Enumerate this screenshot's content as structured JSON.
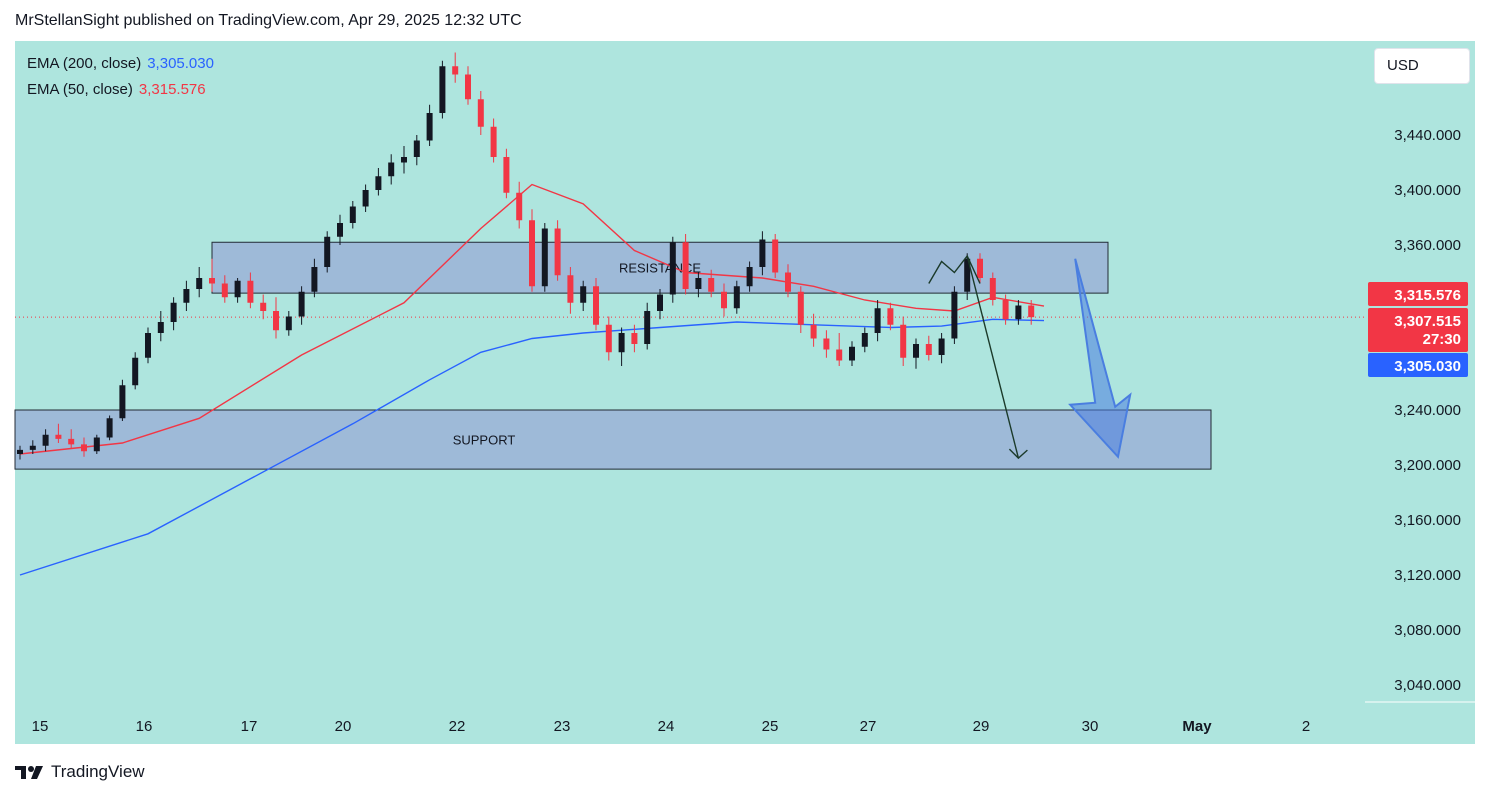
{
  "header": {
    "publisher_line": "MrStellanSight published on TradingView.com, Apr 29, 2025 12:32 UTC"
  },
  "legend": {
    "ema200": {
      "label": "EMA (200, close)",
      "value": "3,305.030",
      "color": "#2962ff"
    },
    "ema50": {
      "label": "EMA (50, close)",
      "value": "3,315.576",
      "color": "#f23645"
    }
  },
  "currency": "USD",
  "footer": {
    "brand": "TradingView"
  },
  "colors": {
    "background": "#aee5de",
    "bull": "#131722",
    "bear": "#f23645",
    "zone_fill": "#9db6d8",
    "arrow": "#4a7ee0"
  },
  "chart_data": {
    "type": "candlestick",
    "symbol_price_label": "3,307.515",
    "countdown": "27:30",
    "y_ticks": [
      3440,
      3400,
      3360,
      3320,
      3280,
      3240,
      3200,
      3160,
      3120,
      3080,
      3040
    ],
    "y_tick_labels": [
      "3,440.000",
      "3,400.000",
      "3,360.000",
      "",
      "",
      "3,240.000",
      "3,200.000",
      "3,160.000",
      "3,120.000",
      "3,080.000",
      "3,040.000"
    ],
    "x_labels": [
      "15",
      "16",
      "17",
      "20",
      "22",
      "23",
      "24",
      "25",
      "27",
      "29",
      "30",
      "May",
      "2"
    ],
    "price_badges": [
      {
        "text": "3,315.576",
        "value": 3315.576,
        "color": "#f23645"
      },
      {
        "text": "3,307.515",
        "value": 3307.515,
        "color": "#f23645"
      },
      {
        "text": "27:30",
        "value": 3307.515,
        "color": "#f23645"
      },
      {
        "text": "3,305.030",
        "value": 3305.03,
        "color": "#2962ff"
      }
    ],
    "zones": [
      {
        "label": "RESISTANCE",
        "low": 3325,
        "high": 3362
      },
      {
        "label": "SUPPORT",
        "low": 3197,
        "high": 3240
      }
    ],
    "candles": [
      [
        3208,
        3214,
        3204,
        3211
      ],
      [
        3211,
        3218,
        3208,
        3214
      ],
      [
        3214,
        3226,
        3210,
        3222
      ],
      [
        3222,
        3230,
        3216,
        3219
      ],
      [
        3219,
        3226,
        3212,
        3215
      ],
      [
        3215,
        3220,
        3206,
        3210
      ],
      [
        3210,
        3222,
        3208,
        3220
      ],
      [
        3220,
        3236,
        3218,
        3234
      ],
      [
        3234,
        3262,
        3232,
        3258
      ],
      [
        3258,
        3282,
        3255,
        3278
      ],
      [
        3278,
        3300,
        3274,
        3296
      ],
      [
        3296,
        3312,
        3290,
        3304
      ],
      [
        3304,
        3322,
        3298,
        3318
      ],
      [
        3318,
        3334,
        3312,
        3328
      ],
      [
        3328,
        3344,
        3322,
        3336
      ],
      [
        3336,
        3350,
        3326,
        3332
      ],
      [
        3332,
        3338,
        3318,
        3322
      ],
      [
        3322,
        3336,
        3318,
        3334
      ],
      [
        3334,
        3340,
        3314,
        3318
      ],
      [
        3318,
        3324,
        3306,
        3312
      ],
      [
        3312,
        3322,
        3292,
        3298
      ],
      [
        3298,
        3312,
        3294,
        3308
      ],
      [
        3308,
        3330,
        3302,
        3326
      ],
      [
        3326,
        3350,
        3322,
        3344
      ],
      [
        3344,
        3370,
        3340,
        3366
      ],
      [
        3366,
        3382,
        3360,
        3376
      ],
      [
        3376,
        3392,
        3372,
        3388
      ],
      [
        3388,
        3404,
        3384,
        3400
      ],
      [
        3400,
        3416,
        3396,
        3410
      ],
      [
        3410,
        3426,
        3404,
        3420
      ],
      [
        3420,
        3432,
        3412,
        3424
      ],
      [
        3424,
        3440,
        3418,
        3436
      ],
      [
        3436,
        3462,
        3432,
        3456
      ],
      [
        3456,
        3494,
        3452,
        3490
      ],
      [
        3490,
        3500,
        3478,
        3484
      ],
      [
        3484,
        3490,
        3462,
        3466
      ],
      [
        3466,
        3472,
        3440,
        3446
      ],
      [
        3446,
        3452,
        3420,
        3424
      ],
      [
        3424,
        3430,
        3394,
        3398
      ],
      [
        3398,
        3406,
        3372,
        3378
      ],
      [
        3378,
        3386,
        3326,
        3330
      ],
      [
        3330,
        3376,
        3326,
        3372
      ],
      [
        3372,
        3378,
        3334,
        3338
      ],
      [
        3338,
        3344,
        3310,
        3318
      ],
      [
        3318,
        3334,
        3312,
        3330
      ],
      [
        3330,
        3336,
        3298,
        3302
      ],
      [
        3302,
        3308,
        3276,
        3282
      ],
      [
        3282,
        3300,
        3272,
        3296
      ],
      [
        3296,
        3302,
        3282,
        3288
      ],
      [
        3288,
        3318,
        3284,
        3312
      ],
      [
        3312,
        3328,
        3306,
        3324
      ],
      [
        3324,
        3366,
        3318,
        3362
      ],
      [
        3362,
        3368,
        3324,
        3328
      ],
      [
        3328,
        3340,
        3322,
        3336
      ],
      [
        3336,
        3342,
        3322,
        3326
      ],
      [
        3326,
        3332,
        3308,
        3314
      ],
      [
        3314,
        3334,
        3310,
        3330
      ],
      [
        3330,
        3348,
        3326,
        3344
      ],
      [
        3344,
        3370,
        3338,
        3364
      ],
      [
        3364,
        3368,
        3336,
        3340
      ],
      [
        3340,
        3346,
        3322,
        3326
      ],
      [
        3326,
        3330,
        3296,
        3302
      ],
      [
        3302,
        3310,
        3286,
        3292
      ],
      [
        3292,
        3298,
        3278,
        3284
      ],
      [
        3284,
        3296,
        3272,
        3276
      ],
      [
        3276,
        3290,
        3272,
        3286
      ],
      [
        3286,
        3300,
        3282,
        3296
      ],
      [
        3296,
        3320,
        3290,
        3314
      ],
      [
        3314,
        3318,
        3298,
        3302
      ],
      [
        3302,
        3308,
        3272,
        3278
      ],
      [
        3278,
        3292,
        3270,
        3288
      ],
      [
        3288,
        3294,
        3276,
        3280
      ],
      [
        3280,
        3296,
        3274,
        3292
      ],
      [
        3292,
        3330,
        3288,
        3326
      ],
      [
        3326,
        3354,
        3320,
        3350
      ],
      [
        3350,
        3354,
        3332,
        3336
      ],
      [
        3336,
        3340,
        3316,
        3320
      ],
      [
        3320,
        3324,
        3302,
        3306
      ],
      [
        3306,
        3320,
        3302,
        3316
      ],
      [
        3316,
        3320,
        3302,
        3307.5
      ]
    ],
    "ema50": [
      [
        0,
        3208
      ],
      [
        8,
        3216
      ],
      [
        14,
        3234
      ],
      [
        22,
        3280
      ],
      [
        30,
        3318
      ],
      [
        36,
        3372
      ],
      [
        40,
        3404
      ],
      [
        44,
        3390
      ],
      [
        48,
        3356
      ],
      [
        52,
        3340
      ],
      [
        58,
        3336
      ],
      [
        62,
        3330
      ],
      [
        66,
        3320
      ],
      [
        70,
        3314
      ],
      [
        73,
        3312
      ],
      [
        76,
        3322
      ],
      [
        80,
        3315.576
      ]
    ],
    "ema200": [
      [
        0,
        3120
      ],
      [
        10,
        3150
      ],
      [
        18,
        3190
      ],
      [
        26,
        3230
      ],
      [
        32,
        3262
      ],
      [
        36,
        3282
      ],
      [
        40,
        3292
      ],
      [
        44,
        3296
      ],
      [
        50,
        3300
      ],
      [
        56,
        3304
      ],
      [
        62,
        3302
      ],
      [
        68,
        3300
      ],
      [
        72,
        3301
      ],
      [
        76,
        3306
      ],
      [
        80,
        3305.03
      ]
    ],
    "annotations": [
      {
        "kind": "projection-line",
        "points": [
          [
            71,
            3332
          ],
          [
            72,
            3348
          ],
          [
            73,
            3340
          ],
          [
            74,
            3352
          ],
          [
            75,
            3332
          ]
        ]
      },
      {
        "kind": "projection-line",
        "points": [
          [
            74,
            3352
          ],
          [
            78,
            3205
          ]
        ]
      },
      {
        "kind": "big-arrow",
        "from": [
          84,
          3350
        ],
        "to": [
          85,
          3206
        ]
      }
    ],
    "ylim": [
      3020,
      3510
    ],
    "grid": false
  }
}
